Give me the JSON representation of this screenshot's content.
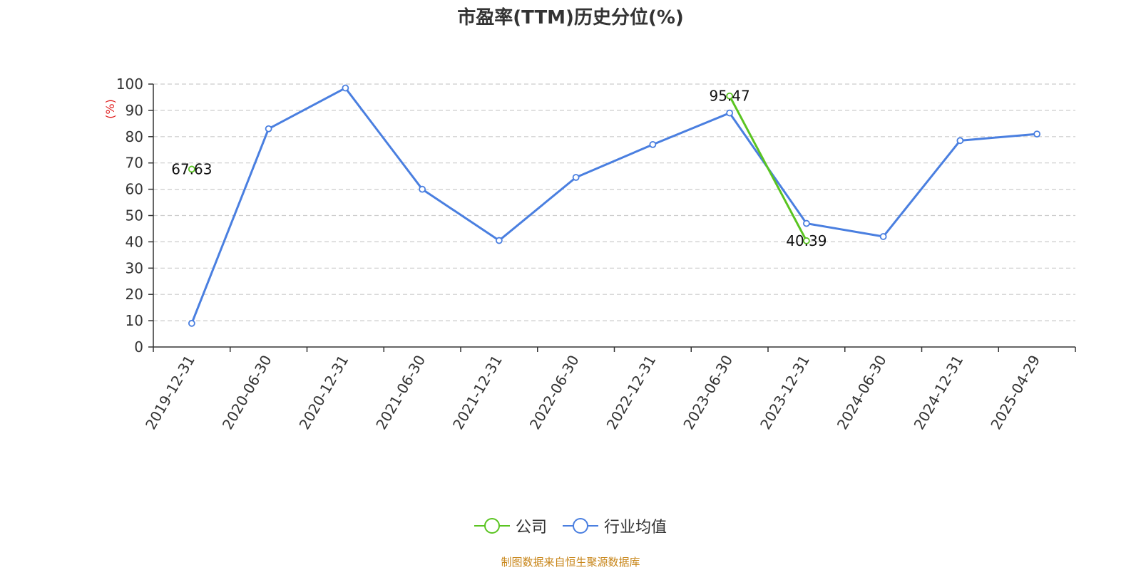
{
  "source_note": "制图数据来自恒生聚源数据库",
  "colors": {
    "company": "#5ac421",
    "industry": "#4a7fe0",
    "source": "#c8861a",
    "ylabel": "#e02020"
  },
  "chart_data": {
    "type": "line",
    "title": "市盈率(TTM)历史分位(%)",
    "ylabel": "(%)",
    "xlabel": "",
    "ylim": [
      0,
      100
    ],
    "yticks": [
      0,
      10,
      20,
      30,
      40,
      50,
      60,
      70,
      80,
      90,
      100
    ],
    "grid": true,
    "legend_position": "bottom-center",
    "categories": [
      "2019-12-31",
      "2020-06-30",
      "2020-12-31",
      "2021-06-30",
      "2021-12-31",
      "2022-06-30",
      "2022-12-31",
      "2023-06-30",
      "2023-12-31",
      "2024-06-30",
      "2024-12-31",
      "2025-04-29"
    ],
    "series": [
      {
        "name": "公司",
        "values": [
          67.63,
          null,
          null,
          null,
          null,
          null,
          null,
          95.47,
          40.39,
          null,
          null,
          null
        ],
        "labels": [
          "67.63",
          "",
          "",
          "",
          "",
          "",
          "",
          "95.47",
          "40.39",
          "",
          "",
          ""
        ]
      },
      {
        "name": "行业均值",
        "values": [
          9,
          83,
          98.5,
          60,
          40.5,
          64.5,
          77,
          89,
          47,
          42,
          78.5,
          81
        ]
      }
    ]
  }
}
